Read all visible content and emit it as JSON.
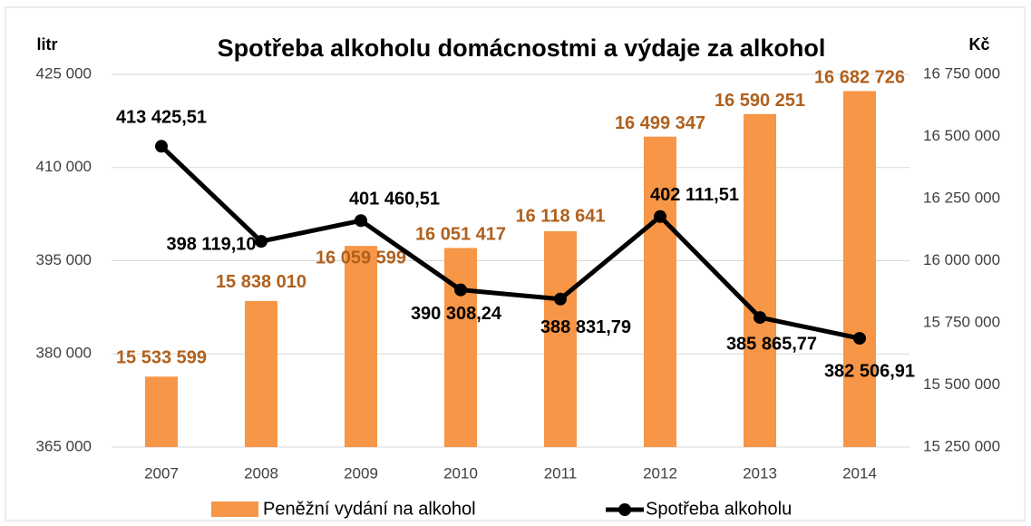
{
  "chart_data": {
    "type": "bar-line",
    "title": "Spotřeba alkoholu domácnostmi a výdaje za alkohol",
    "y_label": "litr",
    "y2_label": "Kč",
    "categories": [
      "2007",
      "2008",
      "2009",
      "2010",
      "2011",
      "2012",
      "2013",
      "2014"
    ],
    "ylim": [
      365000,
      425000
    ],
    "yticks": [
      {
        "value": 365000,
        "label": "365 000"
      },
      {
        "value": 380000,
        "label": "380 000"
      },
      {
        "value": 395000,
        "label": "395 000"
      },
      {
        "value": 410000,
        "label": "410 000"
      },
      {
        "value": 425000,
        "label": "425 000"
      }
    ],
    "y2lim": [
      15250000,
      16750000
    ],
    "y2ticks": [
      {
        "value": 15250000,
        "label": "15 250 000"
      },
      {
        "value": 15500000,
        "label": "15 500 000"
      },
      {
        "value": 15750000,
        "label": "15 750 000"
      },
      {
        "value": 16000000,
        "label": "16 000 000"
      },
      {
        "value": 16250000,
        "label": "16 250 000"
      },
      {
        "value": 16500000,
        "label": "16 500 000"
      },
      {
        "value": 16750000,
        "label": "16 750 000"
      }
    ],
    "grid": true,
    "legend": "bottom",
    "series": [
      {
        "name": "Peněžní vydání na alkohol",
        "type": "bar",
        "axis": "y2",
        "color": "#f79646",
        "label_color": "#b0601c",
        "values": [
          15533599,
          15838010,
          16059599,
          16051417,
          16118641,
          16499347,
          16590251,
          16682726
        ],
        "value_labels": [
          "15 533 599",
          "15 838 010",
          "16 059 599",
          "16 051 417",
          "16 118 641",
          "16 499 347",
          "16 590 251",
          "16 682 726"
        ]
      },
      {
        "name": "Spotřeba alkoholu",
        "type": "line",
        "axis": "y",
        "color": "#000000",
        "label_color": "#000000",
        "values": [
          413425.51,
          398119.1,
          401460.51,
          390308.24,
          388831.79,
          402111.51,
          385865.77,
          382506.91
        ],
        "value_labels": [
          "413 425,51",
          "398 119,10",
          "401 460,51",
          "390 308,24",
          "388 831,79",
          "402 111,51",
          "385 865,77",
          "382 506,91"
        ]
      }
    ]
  }
}
